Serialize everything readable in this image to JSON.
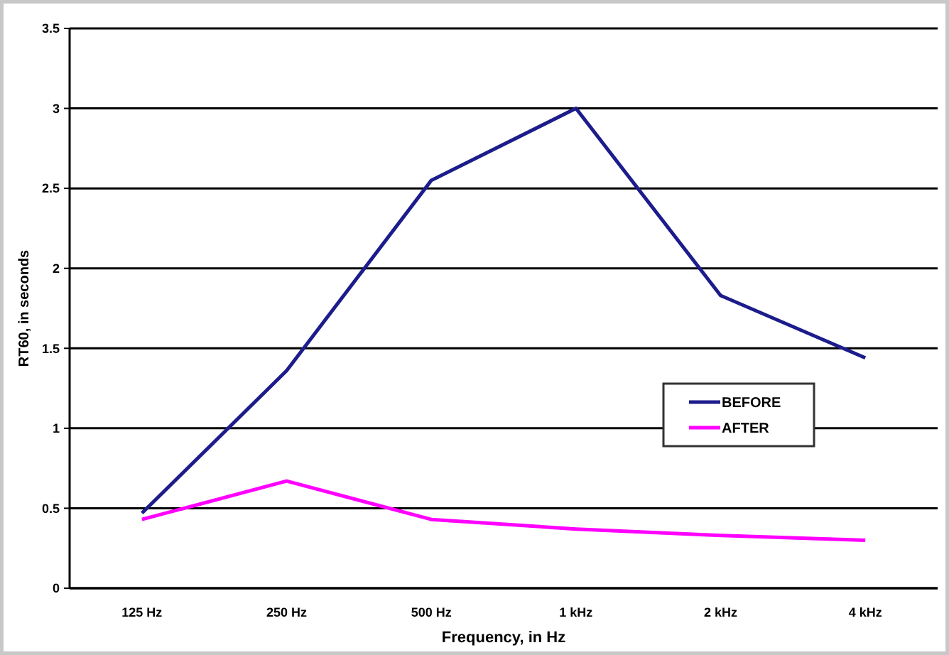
{
  "chart_data": {
    "type": "line",
    "xlabel": "Frequency, in Hz",
    "ylabel": "RT60, in seconds",
    "categories": [
      "125 Hz",
      "250 Hz",
      "500 Hz",
      "1 kHz",
      "2 kHz",
      "4 kHz"
    ],
    "series": [
      {
        "name": "BEFORE",
        "color": "#1c1c8c",
        "values": [
          0.47,
          1.36,
          2.55,
          3.0,
          1.83,
          1.44
        ]
      },
      {
        "name": "AFTER",
        "color": "#ff00ff",
        "values": [
          0.43,
          0.67,
          0.43,
          0.37,
          0.33,
          0.3
        ]
      }
    ],
    "ylim": [
      0,
      3.5
    ],
    "yticks": [
      0,
      0.5,
      1,
      1.5,
      2,
      2.5,
      3,
      3.5
    ],
    "grid": "y",
    "legend": "right",
    "marker": "none",
    "line_style": "solid"
  }
}
